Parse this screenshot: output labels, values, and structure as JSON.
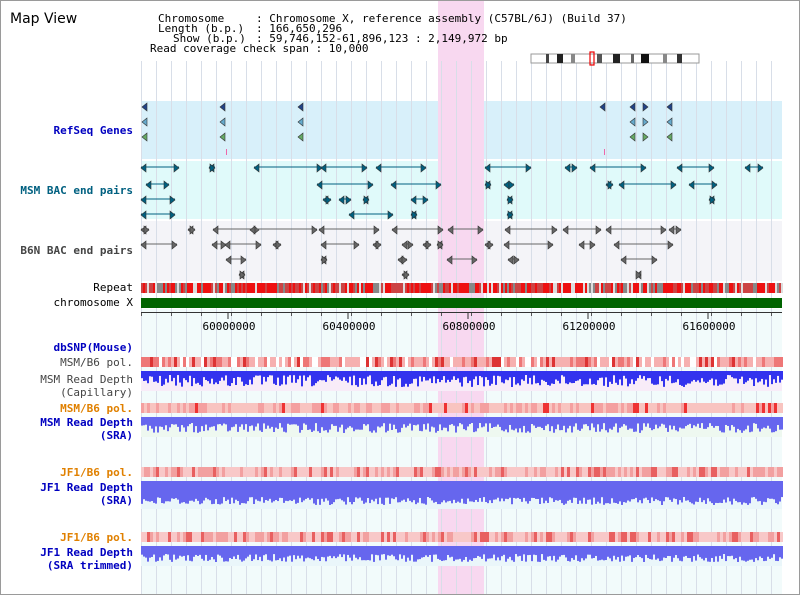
{
  "page": {
    "view_title": "Map View"
  },
  "info": {
    "chromosome_key": "Chromosome",
    "chromosome_val": ": Chromosome X, reference assembly (C57BL/6J) (Build 37)",
    "length_key": "Length (b.p.)",
    "length_val": ": 166,650,296",
    "show_key": "Show (b.p.)",
    "show_val": ": 59,746,152-61,896,123 : 2,149,972 bp",
    "coverage_line": "Read coverage check span : 10,000"
  },
  "tracks": {
    "refseq": "RefSeq Genes",
    "msm_bac": "MSM BAC end pairs",
    "b6n_bac": "B6N BAC end pairs",
    "repeat": "Repeat",
    "chromosome": "chromosome X",
    "dbsnp": "dbSNP(Mouse)",
    "msm_b6_pol_1": "MSM/B6 pol.",
    "msm_depth_cap_1": "MSM Read Depth",
    "msm_depth_cap_2": "(Capillary)",
    "msm_b6_pol_2": "MSM/B6 pol.",
    "msm_depth_sra_1": "MSM Read Depth",
    "msm_depth_sra_2": "(SRA)",
    "jf1_b6_pol_1": "JF1/B6 pol.",
    "jf1_depth_sra_1": "JF1 Read Depth",
    "jf1_depth_sra_2": "(SRA)",
    "jf1_b6_pol_2": "JF1/B6 pol.",
    "jf1_depth_trim_1": "JF1 Read Depth",
    "jf1_depth_trim_2": "(SRA trimmed)"
  },
  "axis": {
    "ticks": [
      "60000000",
      "60400000",
      "60800000",
      "61200000",
      "61600000"
    ]
  },
  "colors": {
    "label_blue": "#0000c0",
    "label_teal": "#006080",
    "label_gray": "#444444",
    "label_orange": "#e08000",
    "highlight": "#f8d8f0",
    "refseq_bg": "#d8f0fa",
    "msm_bac_bg": "#e0fafa",
    "b6n_bac_bg": "#f4f4f8",
    "chromosome": "#006400",
    "depth_blue": "#3333ee",
    "depth_sra": "#6666ee"
  }
}
